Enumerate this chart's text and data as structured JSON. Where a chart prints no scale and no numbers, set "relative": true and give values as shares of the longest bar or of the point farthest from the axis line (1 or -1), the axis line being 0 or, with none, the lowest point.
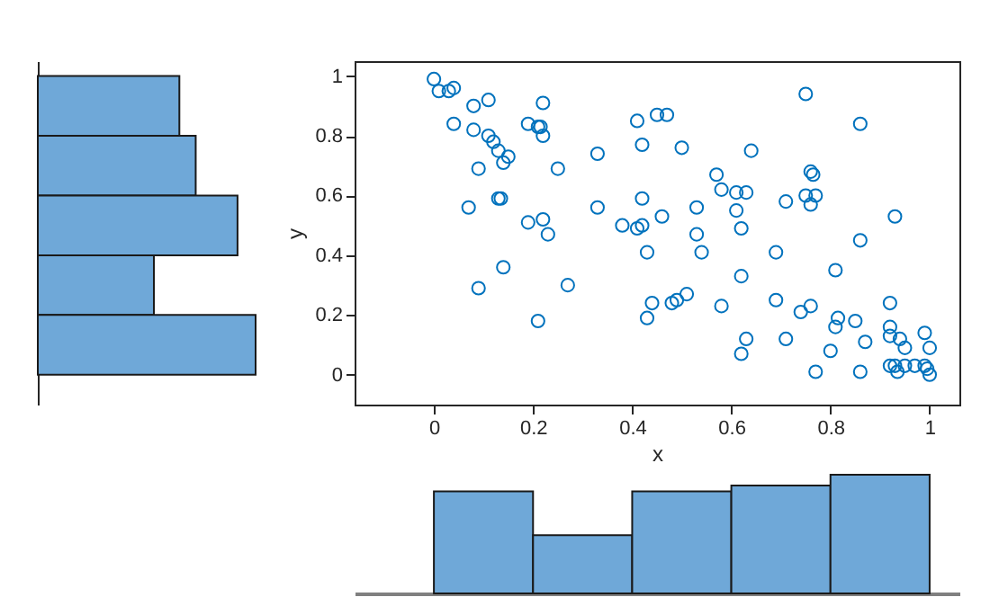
{
  "chart_data": [
    {
      "type": "bar",
      "orientation": "horizontal",
      "relative": true,
      "categories": [
        null,
        null,
        null,
        null,
        null
      ],
      "values": [
        0.65,
        0.725,
        0.917,
        0.533,
        1
      ],
      "color": "#6fa8d8"
    },
    {
      "type": "scatter",
      "xlabel": "x",
      "ylabel": "y",
      "marker": "circle",
      "color": "#0072bd",
      "xlim": [
        -0.16,
        1.06
      ],
      "ylim": [
        -0.1,
        1.05
      ],
      "xticks": [
        0,
        0.2,
        0.4,
        0.6,
        0.8,
        1
      ],
      "yticks": [
        0,
        0.2,
        0.4,
        0.6,
        0.8,
        1
      ],
      "x": [
        0.0,
        0.01,
        0.03,
        0.04,
        0.04,
        0.08,
        0.11,
        0.08,
        0.11,
        0.12,
        0.13,
        0.15,
        0.14,
        0.09,
        0.07,
        0.13,
        0.135,
        0.14,
        0.09,
        0.19,
        0.21,
        0.215,
        0.22,
        0.22,
        0.19,
        0.22,
        0.23,
        0.25,
        0.27,
        0.21,
        0.33,
        0.33,
        0.38,
        0.41,
        0.42,
        0.41,
        0.42,
        0.42,
        0.43,
        0.45,
        0.47,
        0.46,
        0.44,
        0.43,
        0.48,
        0.49,
        0.5,
        0.51,
        0.53,
        0.53,
        0.54,
        0.57,
        0.58,
        0.61,
        0.63,
        0.64,
        0.61,
        0.62,
        0.62,
        0.58,
        0.63,
        0.62,
        0.69,
        0.69,
        0.71,
        0.71,
        0.75,
        0.76,
        0.765,
        0.75,
        0.77,
        0.76,
        0.74,
        0.76,
        0.77,
        0.8,
        0.81,
        0.815,
        0.81,
        0.86,
        0.86,
        0.85,
        0.87,
        0.86,
        0.93,
        0.92,
        0.92,
        0.92,
        0.94,
        0.95,
        0.92,
        0.93,
        0.935,
        0.95,
        0.97,
        0.99,
        1.0,
        0.99,
        0.995,
        1.0
      ],
      "values": [
        0.99,
        0.95,
        0.95,
        0.96,
        0.84,
        0.9,
        0.92,
        0.82,
        0.8,
        0.78,
        0.75,
        0.73,
        0.71,
        0.69,
        0.56,
        0.59,
        0.59,
        0.36,
        0.29,
        0.84,
        0.83,
        0.83,
        0.8,
        0.91,
        0.51,
        0.52,
        0.47,
        0.69,
        0.3,
        0.18,
        0.74,
        0.56,
        0.5,
        0.49,
        0.5,
        0.85,
        0.77,
        0.59,
        0.41,
        0.87,
        0.87,
        0.53,
        0.24,
        0.19,
        0.24,
        0.25,
        0.76,
        0.27,
        0.56,
        0.47,
        0.41,
        0.67,
        0.62,
        0.61,
        0.61,
        0.75,
        0.55,
        0.49,
        0.33,
        0.23,
        0.12,
        0.07,
        0.41,
        0.25,
        0.12,
        0.58,
        0.94,
        0.68,
        0.67,
        0.6,
        0.6,
        0.57,
        0.21,
        0.23,
        0.01,
        0.08,
        0.16,
        0.19,
        0.35,
        0.84,
        0.45,
        0.18,
        0.11,
        0.01,
        0.53,
        0.24,
        0.16,
        0.13,
        0.12,
        0.09,
        0.03,
        0.03,
        0.01,
        0.03,
        0.03,
        0.14,
        0.09,
        0.03,
        0.02,
        0.0
      ]
    },
    {
      "type": "bar",
      "relative": true,
      "categories": [
        null,
        null,
        null,
        null,
        null
      ],
      "values": [
        0.86,
        0.49,
        0.86,
        0.91,
        1
      ],
      "color": "#6fa8d8"
    }
  ]
}
